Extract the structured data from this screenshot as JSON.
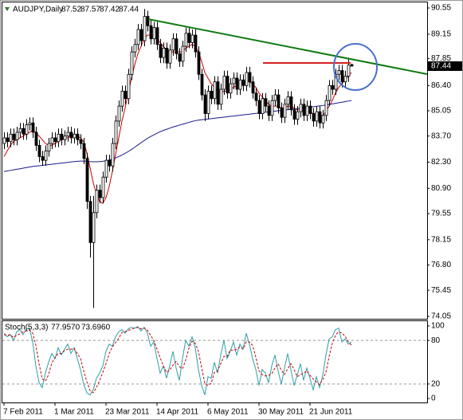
{
  "chart_data": [
    {
      "type": "candlestick",
      "title": "AUDJPY,Daily",
      "categories": [
        "7 Feb 2011",
        null,
        null,
        null,
        null,
        null,
        null,
        null,
        null,
        null,
        null,
        null,
        null,
        null,
        null,
        null,
        "1 Mar 2011",
        null,
        null,
        null,
        null,
        null,
        null,
        null,
        null,
        null,
        null,
        null,
        null,
        null,
        null,
        null,
        "23 Mar 2011",
        null,
        null,
        null,
        null,
        null,
        null,
        null,
        null,
        null,
        null,
        null,
        null,
        null,
        null,
        null,
        "14 Apr 2011",
        null,
        null,
        null,
        null,
        null,
        null,
        null,
        null,
        null,
        null,
        null,
        null,
        null,
        null,
        null,
        "6 May 2011",
        null,
        null,
        null,
        null,
        null,
        null,
        null,
        null,
        null,
        null,
        null,
        null,
        null,
        null,
        null,
        "30 May 2011",
        null,
        null,
        null,
        null,
        null,
        null,
        null,
        null,
        null,
        null,
        null,
        null,
        null,
        null,
        null,
        "21 Jun 2011",
        null,
        null,
        null,
        null,
        null,
        null,
        null,
        null,
        null,
        null,
        null,
        null,
        null
      ],
      "open": [
        83.3,
        83.6,
        83.4,
        83.8,
        83.5,
        83.9,
        84.1,
        83.8,
        84.3,
        84.4,
        83.9,
        83.2,
        82.6,
        82.4,
        82.9,
        83.3,
        83.6,
        83.4,
        83.8,
        83.5,
        83.7,
        83.9,
        83.6,
        83.8,
        83.5,
        83.3,
        82.5,
        80.2,
        78.0,
        79.6,
        80.8,
        80.4,
        81.5,
        82.4,
        82.1,
        83.3,
        84.5,
        85.3,
        86.1,
        85.7,
        87.0,
        88.2,
        88.6,
        89.4,
        88.8,
        90.1,
        89.6,
        88.9,
        89.5,
        88.6,
        87.9,
        88.4,
        87.6,
        88.3,
        88.9,
        88.1,
        87.7,
        88.5,
        89.2,
        88.7,
        89.1,
        88.2,
        87.0,
        85.9,
        84.9,
        86.1,
        85.7,
        86.6,
        85.4,
        86.2,
        86.9,
        86.0,
        86.5,
        86.8,
        86.2,
        86.7,
        86.4,
        87.1,
        86.6,
        86.0,
        85.6,
        84.9,
        85.7,
        85.3,
        84.8,
        85.6,
        85.9,
        85.2,
        84.7,
        85.4,
        85.8,
        85.1,
        84.6,
        85.0,
        85.4,
        84.8,
        85.3,
        84.9,
        84.5,
        85.0,
        84.4,
        84.8,
        85.6,
        86.4,
        86.2,
        87.0,
        87.2,
        86.6,
        86.9,
        87.52
      ],
      "high": [
        83.9,
        83.9,
        84.1,
        84.1,
        84.2,
        84.4,
        84.4,
        84.6,
        84.7,
        84.7,
        84.2,
        83.5,
        82.9,
        83.2,
        83.6,
        83.9,
        83.9,
        84.1,
        84.1,
        84.0,
        84.2,
        84.2,
        84.1,
        84.1,
        83.8,
        83.6,
        82.8,
        80.5,
        80.5,
        81.1,
        81.1,
        81.8,
        82.7,
        82.7,
        83.6,
        84.8,
        85.6,
        86.4,
        86.4,
        87.3,
        88.5,
        88.9,
        89.7,
        89.7,
        90.5,
        90.4,
        89.9,
        89.8,
        89.8,
        88.9,
        88.7,
        88.7,
        88.6,
        89.2,
        89.2,
        88.4,
        88.8,
        89.5,
        89.5,
        89.4,
        89.4,
        88.5,
        87.3,
        86.2,
        86.4,
        86.4,
        86.9,
        86.9,
        86.5,
        87.2,
        87.2,
        86.8,
        87.1,
        87.1,
        87.0,
        87.0,
        87.4,
        87.4,
        86.9,
        86.3,
        85.9,
        86.0,
        86.0,
        85.6,
        85.9,
        86.2,
        86.2,
        85.5,
        85.7,
        86.1,
        86.1,
        85.4,
        85.3,
        85.7,
        85.7,
        85.6,
        85.6,
        85.2,
        85.3,
        85.3,
        85.1,
        85.9,
        86.7,
        86.7,
        87.3,
        87.5,
        87.5,
        87.2,
        87.8,
        87.57
      ],
      "low": [
        83.0,
        83.1,
        83.1,
        83.2,
        83.2,
        83.6,
        83.5,
        83.5,
        84.0,
        83.6,
        82.9,
        82.3,
        82.1,
        82.1,
        82.6,
        83.0,
        83.1,
        83.1,
        83.2,
        83.2,
        83.4,
        83.3,
        83.3,
        83.2,
        83.0,
        82.2,
        79.8,
        77.2,
        74.5,
        79.3,
        80.1,
        80.1,
        81.2,
        81.8,
        81.8,
        83.0,
        84.2,
        85.0,
        85.4,
        85.4,
        86.7,
        87.9,
        88.3,
        88.5,
        88.5,
        89.3,
        88.6,
        88.6,
        88.3,
        87.6,
        87.6,
        87.3,
        87.3,
        88.0,
        87.8,
        87.4,
        87.4,
        88.2,
        88.4,
        88.4,
        87.9,
        86.7,
        85.6,
        84.5,
        84.6,
        85.4,
        85.4,
        85.1,
        85.1,
        85.9,
        85.7,
        85.7,
        86.2,
        85.9,
        85.9,
        86.1,
        86.1,
        86.3,
        85.7,
        85.3,
        84.6,
        84.6,
        85.0,
        84.5,
        84.5,
        85.3,
        84.9,
        84.4,
        84.4,
        85.1,
        84.8,
        84.3,
        84.3,
        84.7,
        84.5,
        84.5,
        84.6,
        84.2,
        84.2,
        84.1,
        84.1,
        84.5,
        85.3,
        85.9,
        85.9,
        86.7,
        86.3,
        86.3,
        86.6,
        87.42
      ],
      "close": [
        83.6,
        83.4,
        83.8,
        83.5,
        83.9,
        84.1,
        83.8,
        84.3,
        84.4,
        83.9,
        83.2,
        82.6,
        82.4,
        82.9,
        83.3,
        83.6,
        83.4,
        83.8,
        83.5,
        83.7,
        83.9,
        83.6,
        83.8,
        83.5,
        83.3,
        82.5,
        80.2,
        78.0,
        79.6,
        80.8,
        80.4,
        81.5,
        82.4,
        82.1,
        83.3,
        84.5,
        85.3,
        86.1,
        85.7,
        87.0,
        88.2,
        88.6,
        89.4,
        88.8,
        90.1,
        89.6,
        88.9,
        89.5,
        88.6,
        87.9,
        88.4,
        87.6,
        88.3,
        88.9,
        88.1,
        87.7,
        88.5,
        89.2,
        88.7,
        89.1,
        88.2,
        87.0,
        85.9,
        84.9,
        86.1,
        85.7,
        86.6,
        85.4,
        86.2,
        86.9,
        86.0,
        86.5,
        86.8,
        86.2,
        86.7,
        86.4,
        87.1,
        86.6,
        86.0,
        85.6,
        84.9,
        85.7,
        85.3,
        84.8,
        85.6,
        85.9,
        85.2,
        84.7,
        85.4,
        85.8,
        85.1,
        84.6,
        85.0,
        85.4,
        84.8,
        85.3,
        84.9,
        84.5,
        85.0,
        84.4,
        84.8,
        85.6,
        86.4,
        86.2,
        87.0,
        87.2,
        86.6,
        86.9,
        87.5,
        87.44
      ],
      "up_color": "#ffffff",
      "down_color": "#000000",
      "overlays": [
        {
          "color": "#cc0000",
          "values": [
            82.6,
            82.9,
            83.2,
            83.4,
            83.5,
            83.6,
            83.7,
            83.8,
            83.9,
            84.0,
            83.9,
            83.7,
            83.5,
            83.3,
            83.2,
            83.2,
            83.3,
            83.4,
            83.5,
            83.6,
            83.6,
            83.7,
            83.7,
            83.7,
            83.6,
            83.4,
            82.8,
            82.0,
            81.2,
            80.6,
            80.2,
            80.1,
            80.4,
            81.0,
            81.8,
            82.7,
            83.6,
            84.5,
            85.2,
            86.0,
            86.8,
            87.5,
            88.1,
            88.5,
            88.9,
            89.1,
            89.1,
            89.0,
            88.9,
            88.7,
            88.5,
            88.3,
            88.2,
            88.2,
            88.2,
            88.2,
            88.2,
            88.4,
            88.5,
            88.6,
            88.5,
            88.2,
            87.7,
            87.1,
            86.8,
            86.5,
            86.3,
            86.1,
            86.0,
            86.1,
            86.1,
            86.2,
            86.3,
            86.4,
            86.5,
            86.5,
            86.6,
            86.6,
            86.5,
            86.3,
            86.0,
            85.8,
            85.6,
            85.4,
            85.3,
            85.3,
            85.3,
            85.2,
            85.2,
            85.3,
            85.3,
            85.2,
            85.1,
            85.1,
            85.0,
            85.0,
            85.0,
            84.9,
            84.9,
            84.8,
            84.8,
            85.0,
            85.3,
            85.6,
            86.0,
            86.3,
            86.5,
            86.7,
            86.9,
            87.1
          ]
        },
        {
          "color": "#1a1a8c",
          "values": [
            81.8,
            81.83,
            81.86,
            81.89,
            81.92,
            81.95,
            81.98,
            82.01,
            82.04,
            82.07,
            82.09,
            82.11,
            82.13,
            82.15,
            82.17,
            82.19,
            82.21,
            82.23,
            82.25,
            82.27,
            82.29,
            82.31,
            82.33,
            82.35,
            82.36,
            82.36,
            82.35,
            82.33,
            82.32,
            82.32,
            82.33,
            82.35,
            82.38,
            82.42,
            82.47,
            82.53,
            82.6,
            82.68,
            82.77,
            82.87,
            82.98,
            83.1,
            83.22,
            83.34,
            83.46,
            83.57,
            83.67,
            83.76,
            83.85,
            83.93,
            84.0,
            84.06,
            84.12,
            84.18,
            84.23,
            84.28,
            84.33,
            84.38,
            84.43,
            84.48,
            84.52,
            84.55,
            84.57,
            84.59,
            84.61,
            84.63,
            84.65,
            84.67,
            84.69,
            84.71,
            84.73,
            84.75,
            84.77,
            84.79,
            84.81,
            84.83,
            84.85,
            84.87,
            84.89,
            84.91,
            84.93,
            84.95,
            84.97,
            84.99,
            85.01,
            85.03,
            85.05,
            85.07,
            85.09,
            85.11,
            85.13,
            85.15,
            85.17,
            85.19,
            85.21,
            85.23,
            85.25,
            85.27,
            85.29,
            85.31,
            85.33,
            85.36,
            85.39,
            85.42,
            85.45,
            85.48,
            85.51,
            85.54,
            85.57,
            85.6
          ]
        }
      ],
      "ylim": [
        73.92,
        90.85
      ],
      "yticks": [
        90.55,
        89.15,
        87.85,
        {
          "value": 86.4,
          "label": "86.40"
        },
        85.05,
        {
          "value": 83.7,
          "label": "83.70"
        },
        {
          "value": 82.3,
          "label": "82.30"
        },
        {
          "value": 80.9,
          "label": "80.90"
        },
        79.55,
        78.15,
        {
          "value": 76.8,
          "label": "76.80"
        },
        75.45,
        74.05
      ]
    },
    {
      "type": "line",
      "title": "Stoch(5,3,3)",
      "header_values": [
        {
          "value": 77.957,
          "label": "77.9570"
        },
        {
          "value": 73.696,
          "label": "73.6960"
        }
      ],
      "series": [
        {
          "color": "#2f9fa6",
          "dashed": false,
          "values": [
            90,
            85,
            88,
            80,
            92,
            95,
            88,
            96,
            97,
            78,
            45,
            22,
            15,
            35,
            50,
            62,
            55,
            70,
            60,
            68,
            75,
            62,
            70,
            55,
            40,
            20,
            8,
            5,
            12,
            28,
            35,
            45,
            65,
            75,
            72,
            85,
            92,
            95,
            90,
            96,
            98,
            97,
            99,
            93,
            98,
            90,
            72,
            78,
            55,
            35,
            45,
            28,
            45,
            65,
            42,
            25,
            55,
            80,
            72,
            85,
            70,
            40,
            18,
            5,
            30,
            28,
            50,
            35,
            60,
            80,
            55,
            65,
            78,
            60,
            75,
            68,
            90,
            75,
            55,
            40,
            18,
            40,
            35,
            22,
            45,
            60,
            38,
            20,
            42,
            62,
            40,
            18,
            32,
            48,
            25,
            42,
            28,
            12,
            30,
            15,
            32,
            60,
            82,
            85,
            95,
            97,
            78,
            82,
            75,
            77.957
          ]
        },
        {
          "color": "#cc0000",
          "dashed": true,
          "values": [
            88,
            87,
            88,
            84,
            87,
            89,
            92,
            93,
            94,
            90,
            73,
            48,
            27,
            24,
            33,
            49,
            56,
            62,
            62,
            66,
            68,
            68,
            69,
            62,
            55,
            38,
            23,
            11,
            8,
            15,
            25,
            36,
            48,
            62,
            71,
            77,
            83,
            91,
            92,
            94,
            95,
            97,
            98,
            96,
            97,
            94,
            87,
            80,
            68,
            56,
            45,
            36,
            39,
            46,
            51,
            44,
            41,
            53,
            69,
            79,
            76,
            65,
            43,
            21,
            18,
            21,
            36,
            38,
            48,
            58,
            58,
            67,
            66,
            68,
            71,
            68,
            78,
            78,
            73,
            57,
            38,
            33,
            31,
            32,
            34,
            42,
            48,
            39,
            33,
            41,
            48,
            40,
            30,
            33,
            35,
            38,
            32,
            27,
            23,
            19,
            26,
            36,
            58,
            76,
            87,
            92,
            90,
            86,
            78,
            73.696
          ]
        }
      ],
      "levels": [
        20,
        80
      ],
      "ylim": [
        -5.4,
        106.5
      ],
      "yticks": [
        0,
        20,
        80,
        100
      ]
    }
  ]
}
